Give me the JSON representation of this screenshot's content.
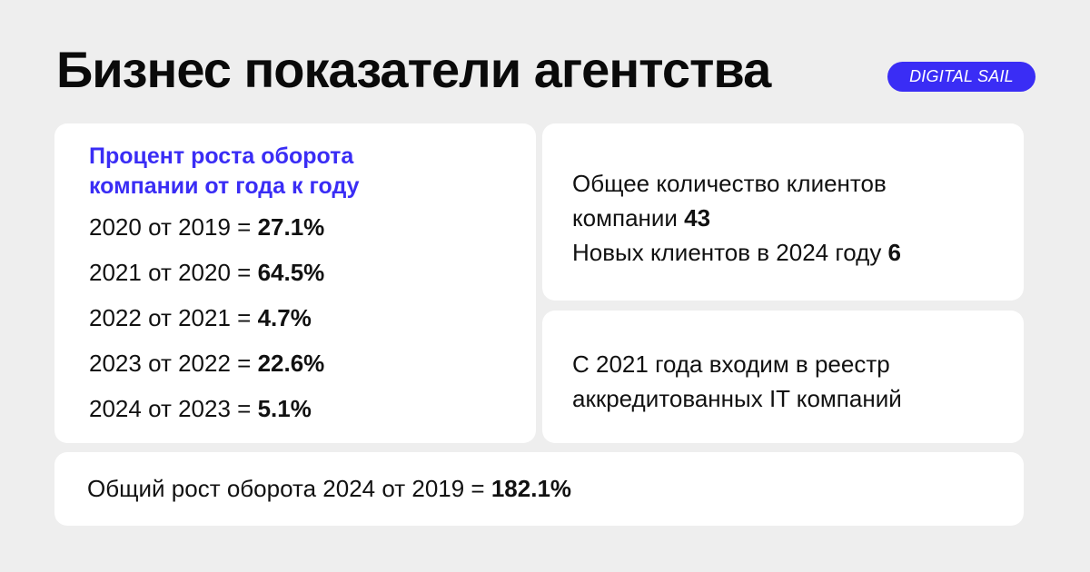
{
  "header": {
    "title": "Бизнес показатели агентства",
    "brand": "DIGITAL SAIL"
  },
  "growth_card": {
    "heading": "Процент роста оборота компании от года к году",
    "rows": [
      {
        "label": "2020 от 2019 = ",
        "value": "27.1%"
      },
      {
        "label": "2021 от 2020 = ",
        "value": "64.5%"
      },
      {
        "label": "2022 от 2021 = ",
        "value": "4.7%"
      },
      {
        "label": "2023 от 2022 = ",
        "value": "22.6%"
      },
      {
        "label": "2024 от 2023 = ",
        "value": "5.1%"
      }
    ]
  },
  "clients_card": {
    "line1": "Общее количество клиентов",
    "line2_text": "компании ",
    "line2_value": "43",
    "line3_text": "Новых клиентов в 2024 году ",
    "line3_value": "6"
  },
  "registry_card": {
    "line1": "С 2021 года входим в реестр",
    "line2": "аккредитованных IT компаний"
  },
  "total_card": {
    "text": "Общий рост оборота 2024 от 2019 = ",
    "value": "182.1%"
  },
  "colors": {
    "accent": "#3a2df5",
    "background": "#eeeeee",
    "card": "#ffffff",
    "text": "#111111"
  }
}
